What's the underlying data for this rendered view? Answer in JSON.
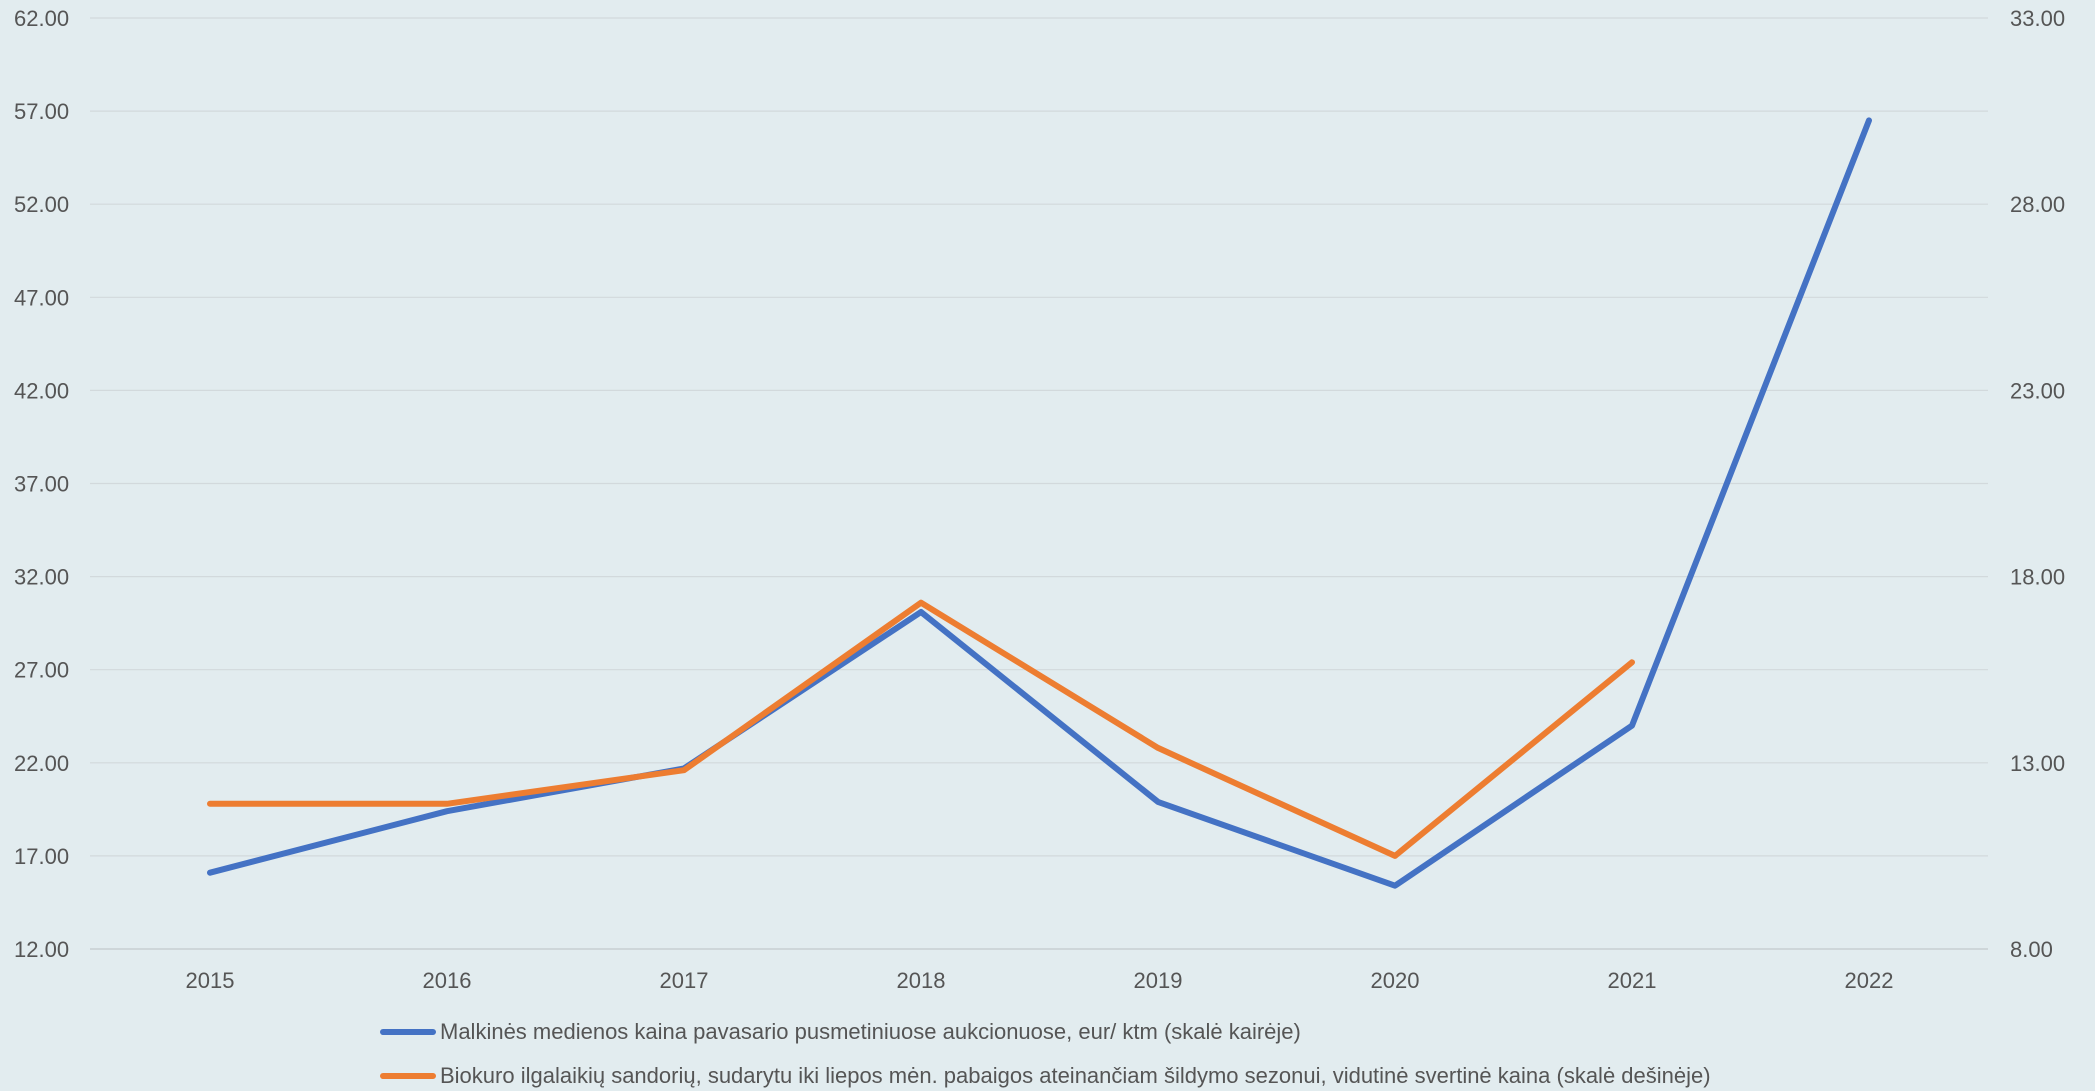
{
  "chart_data": {
    "type": "line",
    "categories": [
      "2015",
      "2016",
      "2017",
      "2018",
      "2019",
      "2020",
      "2021",
      "2022"
    ],
    "y_left": {
      "min": 12,
      "max": 62,
      "step": 5,
      "ticks": [
        "12.00",
        "17.00",
        "22.00",
        "27.00",
        "32.00",
        "37.00",
        "42.00",
        "47.00",
        "52.00",
        "57.00",
        "62.00"
      ]
    },
    "y_right": {
      "min": 8,
      "max": 33,
      "step": 5,
      "ticks": [
        "8.00",
        "13.00",
        "18.00",
        "23.00",
        "28.00",
        "33.00"
      ]
    },
    "grid": true,
    "legend_position": "bottom",
    "series": [
      {
        "name": "Malkinės medienos kaina pavasario pusmetiniuose aukcionuose, eur/ ktm (skalė kairėje)",
        "axis": "left",
        "color": "#4472c4",
        "values": [
          16.1,
          19.4,
          21.7,
          30.1,
          19.9,
          15.4,
          24.0,
          56.5
        ]
      },
      {
        "name": "Biokuro ilgalaikių sandorių, sudarytu iki liepos mėn. pabaigos ateinančiam šildymo sezonui, vidutinė svertinė kaina (skalė dešinėje)",
        "axis": "right",
        "color": "#ed7d31",
        "values": [
          11.9,
          11.9,
          12.8,
          17.3,
          13.4,
          10.5,
          15.7,
          null
        ]
      }
    ]
  }
}
